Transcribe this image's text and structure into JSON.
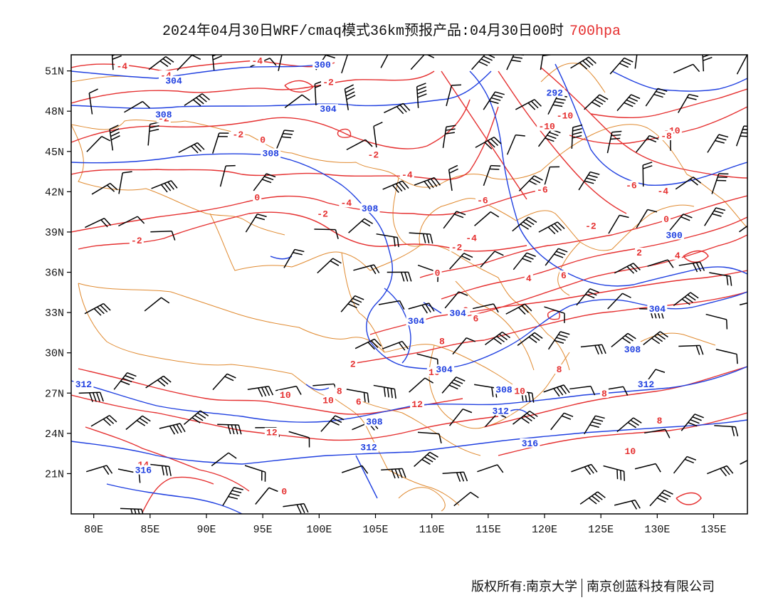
{
  "title": {
    "main": "2024年04月30日WRF/cmaq模式36km预报产品:04月30日00时",
    "level": "700hpa"
  },
  "colors": {
    "temperature": "#e53030",
    "height": "#2040e0",
    "border": "#e08a30",
    "wind": "#000000"
  },
  "lat_labels": [
    "51N",
    "48N",
    "45N",
    "42N",
    "39N",
    "36N",
    "33N",
    "30N",
    "27N",
    "24N",
    "21N"
  ],
  "lon_labels": [
    "80E",
    "85E",
    "90E",
    "95E",
    "100E",
    "105E",
    "110E",
    "115E",
    "120E",
    "125E",
    "130E",
    "135E"
  ],
  "temperature_labels": [
    {
      "text": "-4",
      "lon": 82.5,
      "lat": 51.2
    },
    {
      "text": "-4",
      "lon": 86.4,
      "lat": 50.5
    },
    {
      "text": "-4",
      "lon": 94.5,
      "lat": 51.6
    },
    {
      "text": "-2",
      "lon": 86.2,
      "lat": 47.3
    },
    {
      "text": "-2",
      "lon": 100.8,
      "lat": 50.0
    },
    {
      "text": "-2",
      "lon": 92.8,
      "lat": 46.1
    },
    {
      "text": "0",
      "lon": 95.0,
      "lat": 45.7
    },
    {
      "text": "-2",
      "lon": 104.8,
      "lat": 44.6
    },
    {
      "text": "-4",
      "lon": 107.8,
      "lat": 43.1
    },
    {
      "text": "-10",
      "lon": 121.8,
      "lat": 47.5
    },
    {
      "text": "-10",
      "lon": 120.2,
      "lat": 46.7
    },
    {
      "text": "-10",
      "lon": 131.3,
      "lat": 46.4
    },
    {
      "text": "-8",
      "lon": 130.8,
      "lat": 46.0
    },
    {
      "text": "-6",
      "lon": 119.8,
      "lat": 42.0
    },
    {
      "text": "-6",
      "lon": 127.7,
      "lat": 42.3
    },
    {
      "text": "-4",
      "lon": 130.5,
      "lat": 41.9
    },
    {
      "text": "-6",
      "lon": 114.5,
      "lat": 41.2
    },
    {
      "text": "-4",
      "lon": 102.4,
      "lat": 41.0
    },
    {
      "text": "0",
      "lon": 94.5,
      "lat": 41.4
    },
    {
      "text": "-2",
      "lon": 100.3,
      "lat": 40.2
    },
    {
      "text": "-2",
      "lon": 124.1,
      "lat": 39.3
    },
    {
      "text": "0",
      "lon": 130.8,
      "lat": 39.8
    },
    {
      "text": "-4",
      "lon": 113.5,
      "lat": 38.4
    },
    {
      "text": "-2",
      "lon": 112.2,
      "lat": 37.7
    },
    {
      "text": "-2",
      "lon": 83.8,
      "lat": 38.2
    },
    {
      "text": "2",
      "lon": 128.4,
      "lat": 37.3
    },
    {
      "text": "4",
      "lon": 131.8,
      "lat": 37.1
    },
    {
      "text": "0",
      "lon": 110.5,
      "lat": 35.8
    },
    {
      "text": "4",
      "lon": 118.6,
      "lat": 35.4
    },
    {
      "text": "6",
      "lon": 121.7,
      "lat": 35.6
    },
    {
      "text": "2",
      "lon": 113.0,
      "lat": 33.0
    },
    {
      "text": "6",
      "lon": 113.9,
      "lat": 32.4
    },
    {
      "text": "8",
      "lon": 110.9,
      "lat": 30.7
    },
    {
      "text": "2",
      "lon": 103.0,
      "lat": 29.0
    },
    {
      "text": "10",
      "lon": 110.2,
      "lat": 28.4
    },
    {
      "text": "8",
      "lon": 121.3,
      "lat": 28.6
    },
    {
      "text": "10",
      "lon": 97.0,
      "lat": 26.7
    },
    {
      "text": "10",
      "lon": 100.8,
      "lat": 26.3
    },
    {
      "text": "8",
      "lon": 101.8,
      "lat": 27.0
    },
    {
      "text": "6",
      "lon": 103.5,
      "lat": 26.2
    },
    {
      "text": "10",
      "lon": 117.8,
      "lat": 27.0
    },
    {
      "text": "8",
      "lon": 125.3,
      "lat": 26.8
    },
    {
      "text": "12",
      "lon": 108.7,
      "lat": 26.0
    },
    {
      "text": "8",
      "lon": 130.2,
      "lat": 24.8
    },
    {
      "text": "12",
      "lon": 95.8,
      "lat": 23.9
    },
    {
      "text": "10",
      "lon": 127.6,
      "lat": 22.5
    },
    {
      "text": "14",
      "lon": 84.4,
      "lat": 21.5
    },
    {
      "text": "0",
      "lon": 96.9,
      "lat": 19.5
    }
  ],
  "height_labels": [
    {
      "text": "304",
      "lon": 87.1,
      "lat": 50.1
    },
    {
      "text": "300",
      "lon": 100.3,
      "lat": 51.3
    },
    {
      "text": "292",
      "lon": 120.9,
      "lat": 49.2
    },
    {
      "text": "304",
      "lon": 100.8,
      "lat": 48.0
    },
    {
      "text": "308",
      "lon": 86.2,
      "lat": 47.6
    },
    {
      "text": "308",
      "lon": 95.7,
      "lat": 44.7
    },
    {
      "text": "308",
      "lon": 104.5,
      "lat": 40.6
    },
    {
      "text": "300",
      "lon": 131.5,
      "lat": 38.6
    },
    {
      "text": "304",
      "lon": 112.3,
      "lat": 32.8
    },
    {
      "text": "304",
      "lon": 108.6,
      "lat": 32.2
    },
    {
      "text": "304",
      "lon": 130.0,
      "lat": 33.1
    },
    {
      "text": "308",
      "lon": 127.8,
      "lat": 30.1
    },
    {
      "text": "304",
      "lon": 111.1,
      "lat": 28.6
    },
    {
      "text": "308",
      "lon": 116.4,
      "lat": 27.1
    },
    {
      "text": "312",
      "lon": 129.0,
      "lat": 27.5
    },
    {
      "text": "312",
      "lon": 79.1,
      "lat": 27.5
    },
    {
      "text": "312",
      "lon": 116.1,
      "lat": 25.5
    },
    {
      "text": "308",
      "lon": 104.9,
      "lat": 24.7
    },
    {
      "text": "312",
      "lon": 104.4,
      "lat": 22.8
    },
    {
      "text": "316",
      "lon": 118.7,
      "lat": 23.1
    },
    {
      "text": "316",
      "lon": 84.4,
      "lat": 21.1
    }
  ],
  "footer": {
    "left": "版权所有:南京大学",
    "right": "南京创蓝科技有限公司"
  }
}
